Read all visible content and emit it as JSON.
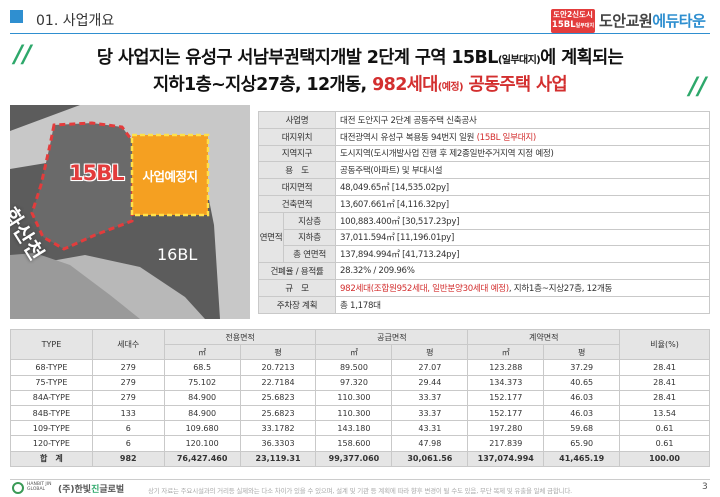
{
  "header": {
    "section_title": "01. 사업개요",
    "logo_badge_line1": "도안2신도시",
    "logo_badge_line2": "15BL",
    "logo_badge_line2_small": "일부대지",
    "logo_name_part1": "도안교원",
    "logo_name_part2": "에듀타운",
    "accent_color": "#2f8fd0",
    "brand_red": "#e33c3c"
  },
  "headline": {
    "line1_main": "당 사업지는 유성구 서남부권택지개발 2단계 구역 15BL",
    "line1_small": "(일부대지)",
    "line1_tail": "에 계획되는",
    "line2_pre": "지하1층~지상27층, 12개동, ",
    "line2_red_main": "982세대",
    "line2_red_small": "(예정)",
    "line2_red_tail": " 공동주택 사업"
  },
  "map": {
    "label_block": "15BL",
    "label_site": "사업예정지",
    "label_neighbor": "16BL",
    "label_river": "화산천"
  },
  "info_table": {
    "rows": [
      {
        "key": "사업명",
        "value": "대전 도안지구 2단계 공동주택 신축공사"
      },
      {
        "key": "대지위치",
        "value_pre": "대전광역시 유성구 복용동 94번지 일원 ",
        "value_red": "(15BL 일부대지)"
      },
      {
        "key": "지역지구",
        "value": "도시지역(도시개발사업 진행 후 제2종일반주거지역 지정 예정)"
      },
      {
        "key": "용　도",
        "value": "공동주택(아파트) 및 부대시설"
      },
      {
        "key": "대지면적",
        "value": "48,049.65㎡ [14,535.02py]"
      },
      {
        "key": "건축면적",
        "value": "13,607.661㎡ [4,116.32py]"
      },
      {
        "key_group": "연면적",
        "key": "지상층",
        "value": "100,883.400㎡ [30,517.23py]"
      },
      {
        "key": "지하층",
        "value": "37,011.594㎡ [11,196.01py]"
      },
      {
        "key": "총 연면적",
        "value": "137,894.994㎡ [41,713.24py]"
      },
      {
        "key": "건폐율 / 용적률",
        "value": "28.32% / 209.96%"
      },
      {
        "key": "규　모",
        "value_red": "982세대(조합원952세대, 일반분양30세대 예정)",
        "value_post": ", 지하1층~지상27층, 12개동"
      },
      {
        "key": "주차장 계획",
        "value": "총 1,178대"
      }
    ]
  },
  "unit_table": {
    "headers": {
      "type": "TYPE",
      "households": "세대수",
      "exclusive": "전용면적",
      "supply": "공급면적",
      "contract": "계약면적",
      "ratio": "비율(%)",
      "unit_m2": "㎡",
      "unit_py": "평"
    },
    "rows": [
      [
        "68-TYPE",
        "279",
        "68.5",
        "20.7213",
        "89.500",
        "27.07",
        "123.288",
        "37.29",
        "28.41"
      ],
      [
        "75-TYPE",
        "279",
        "75.102",
        "22.7184",
        "97.320",
        "29.44",
        "134.373",
        "40.65",
        "28.41"
      ],
      [
        "84A-TYPE",
        "279",
        "84.900",
        "25.6823",
        "110.300",
        "33.37",
        "152.177",
        "46.03",
        "28.41"
      ],
      [
        "84B-TYPE",
        "133",
        "84.900",
        "25.6823",
        "110.300",
        "33.37",
        "152.177",
        "46.03",
        "13.54"
      ],
      [
        "109-TYPE",
        "6",
        "109.680",
        "33.1782",
        "143.180",
        "43.31",
        "197.280",
        "59.68",
        "0.61"
      ],
      [
        "120-TYPE",
        "6",
        "120.100",
        "36.3303",
        "158.600",
        "47.98",
        "217.839",
        "65.90",
        "0.61"
      ]
    ],
    "total": [
      "합　계",
      "982",
      "76,427.460",
      "23,119.31",
      "99,377.060",
      "30,061.56",
      "137,074.994",
      "41,465.19",
      "100.00"
    ]
  },
  "footer": {
    "logo_small": "HANBIT JIN GLOBAL",
    "company_pre": "(주)한빛",
    "company_green": "진",
    "company_post": "글로벌",
    "disclaimer": "상기 자료는 주요시설과의 거리등 실제와는 다소 차이가 있을 수 있으며, 설계 및 기관 등 계획에 따라 향후 변경이 될 수도 있음, 무단 복제 및 유출을 일체 금합니다.",
    "page_number": "3"
  }
}
